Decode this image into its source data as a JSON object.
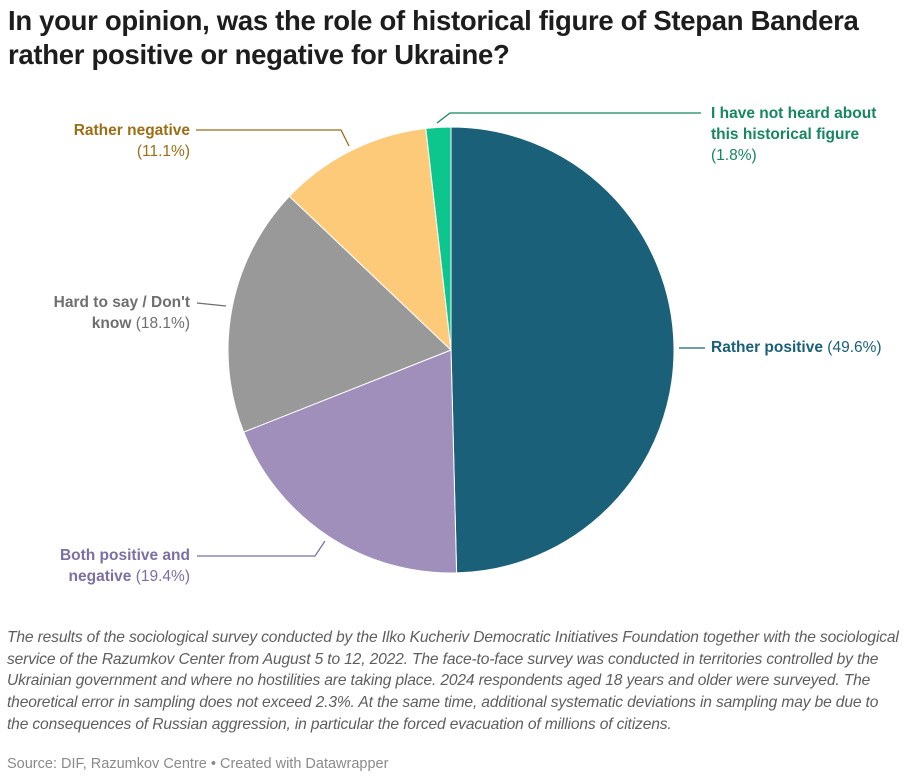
{
  "chart_data": {
    "type": "pie",
    "title": "In your opinion, was the role of historical figure of Stepan Bandera rather positive or negative for Ukraine?",
    "start_angle": "top, clockwise",
    "slices": [
      {
        "name": "Rather positive",
        "value": 49.6,
        "value_label": "(49.6%)",
        "color": "#1a6079",
        "label_color": "#1a6079"
      },
      {
        "name": "Both positive and negative",
        "value": 19.4,
        "value_label": "(19.4%)",
        "color": "#a08fbb",
        "label_color": "#7d6fa3"
      },
      {
        "name": "Hard to say / Don't know",
        "value": 18.1,
        "value_label": "(18.1%)",
        "color": "#999999",
        "label_color": "#6f6f6f"
      },
      {
        "name": "Rather negative",
        "value": 11.1,
        "value_label": "(11.1%)",
        "color": "#fdca79",
        "label_color": "#9c6e16"
      },
      {
        "name": "I have not heard about this historical figure",
        "value": 1.8,
        "value_label": "(1.8%)",
        "color": "#0cc68e",
        "label_color": "#16875f"
      }
    ],
    "label_lines": {
      "Both positive and negative": [
        "Both positive and",
        "negative"
      ],
      "Hard to say / Don't know": [
        "Hard to say / Don't",
        "know"
      ],
      "I have not heard about this historical figure": [
        "I have not heard about",
        "this historical figure"
      ]
    }
  },
  "notes": "The results of the sociological survey conducted by the Ilko Kucheriv Democratic Initiatives Foundation together with the sociological service of the Razumkov Center from August 5 to 12, 2022. The face-to-face survey was conducted in territories controlled by the Ukrainian government and where no hostilities are taking place. 2024 respondents aged 18 years and older were surveyed. The theoretical error in sampling does not exceed 2.3%. At the same time, additional systematic deviations in sampling may be due to the consequences of Russian aggression, in particular the forced evacuation of millions of citizens.",
  "source": "Source: DIF, Razumkov Centre • Created with Datawrapper"
}
